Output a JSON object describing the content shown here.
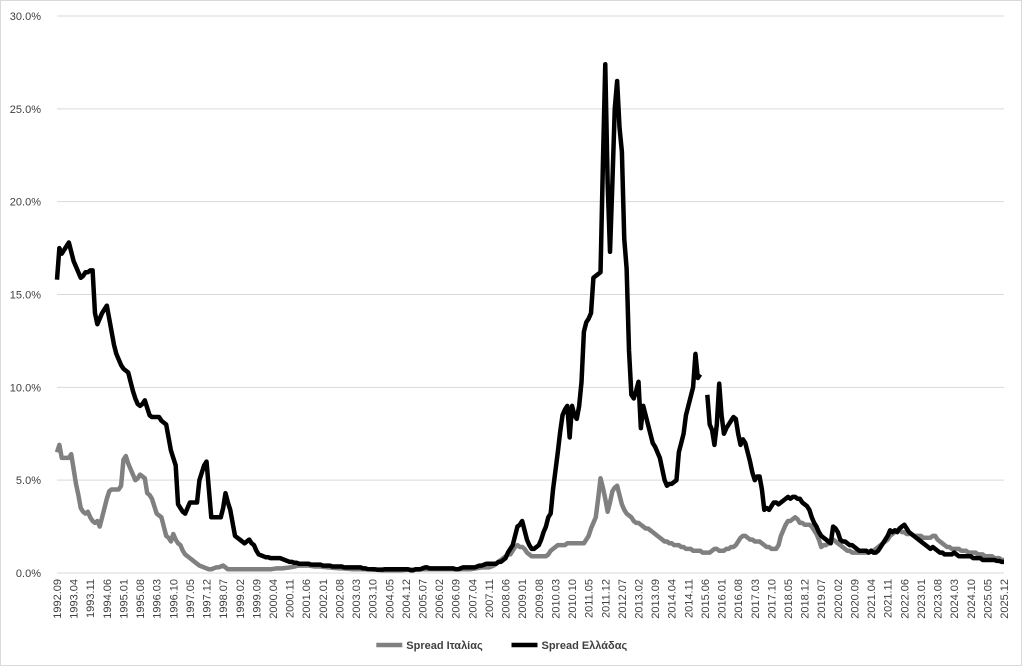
{
  "chart_data": {
    "type": "line",
    "categories": [
      "1992.09",
      null,
      null,
      null,
      null,
      null,
      null,
      "1993.04",
      null,
      null,
      null,
      null,
      null,
      null,
      "1993.11",
      null,
      null,
      null,
      null,
      null,
      null,
      "1994.06",
      null,
      null,
      null,
      null,
      null,
      null,
      "1995.01",
      null,
      null,
      null,
      null,
      null,
      null,
      "1995.08",
      null,
      null,
      null,
      null,
      null,
      null,
      "1996.03",
      null,
      null,
      null,
      null,
      null,
      null,
      "1996.10",
      null,
      null,
      null,
      null,
      null,
      null,
      "1997.05",
      null,
      null,
      null,
      null,
      null,
      null,
      "1997.12",
      null,
      null,
      null,
      null,
      null,
      null,
      "1998.07",
      null,
      null,
      null,
      null,
      null,
      null,
      "1999.02",
      null,
      null,
      null,
      null,
      null,
      null,
      "1999.09",
      null,
      null,
      null,
      null,
      null,
      null,
      "2000.04",
      null,
      null,
      null,
      null,
      null,
      null,
      "2000.11",
      null,
      null,
      null,
      null,
      null,
      null,
      "2001.06",
      null,
      null,
      null,
      null,
      null,
      null,
      "2002.01",
      null,
      null,
      null,
      null,
      null,
      null,
      "2002.08",
      null,
      null,
      null,
      null,
      null,
      null,
      "2003.03",
      null,
      null,
      null,
      null,
      null,
      null,
      "2003.10",
      null,
      null,
      null,
      null,
      null,
      null,
      "2004.05",
      null,
      null,
      null,
      null,
      null,
      null,
      "2004.12",
      null,
      null,
      null,
      null,
      null,
      null,
      "2005.07",
      null,
      null,
      null,
      null,
      null,
      null,
      "2006.02",
      null,
      null,
      null,
      null,
      null,
      null,
      "2006.09",
      null,
      null,
      null,
      null,
      null,
      null,
      "2007.04",
      null,
      null,
      null,
      null,
      null,
      null,
      "2007.11",
      null,
      null,
      null,
      null,
      null,
      null,
      "2008.06",
      null,
      null,
      null,
      null,
      null,
      null,
      "2009.01",
      null,
      null,
      null,
      null,
      null,
      null,
      "2009.08",
      null,
      null,
      null,
      null,
      null,
      null,
      "2010.03",
      null,
      null,
      null,
      null,
      null,
      null,
      "2010.10",
      null,
      null,
      null,
      null,
      null,
      null,
      "2011.05",
      null,
      null,
      null,
      null,
      null,
      null,
      "2011.12",
      null,
      null,
      null,
      null,
      null,
      null,
      "2012.07",
      null,
      null,
      null,
      null,
      null,
      null,
      "2013.02",
      null,
      null,
      null,
      null,
      null,
      null,
      "2013.09",
      null,
      null,
      null,
      null,
      null,
      null,
      "2014.04",
      null,
      null,
      null,
      null,
      null,
      null,
      "2014.11",
      null,
      null,
      null,
      null,
      null,
      null,
      "2015.06",
      null,
      null,
      null,
      null,
      null,
      null,
      "2016.01",
      null,
      null,
      null,
      null,
      null,
      null,
      "2016.08",
      null,
      null,
      null,
      null,
      null,
      null,
      "2017.03",
      null,
      null,
      null,
      null,
      null,
      null,
      "2017.10",
      null,
      null,
      null,
      null,
      null,
      null,
      "2018.05",
      null,
      null,
      null,
      null,
      null,
      null,
      "2018.12",
      null,
      null,
      null,
      null,
      null,
      null,
      "2019.07",
      null,
      null,
      null,
      null,
      null,
      null,
      "2020.02",
      null,
      null,
      null,
      null,
      null,
      null,
      "2020.09",
      null,
      null,
      null,
      null,
      null,
      null,
      "2021.04",
      null,
      null,
      null,
      null,
      null,
      null,
      "2021.11",
      null,
      null,
      null,
      null,
      null,
      null,
      "2022.06",
      null,
      null,
      null,
      null,
      null,
      null,
      "2023.01",
      null,
      null,
      null,
      null,
      null,
      null,
      "2023.08",
      null,
      null,
      null,
      null,
      null,
      null,
      "2024.03",
      null,
      null,
      null,
      null,
      null,
      null,
      "2024.10",
      null,
      null,
      null,
      null,
      null,
      null,
      "2025.05",
      null,
      null,
      null,
      null,
      null,
      null,
      "2025.12"
    ],
    "series": [
      {
        "name": "Spread Ιταλίας",
        "color": "#808080",
        "values": [
          6.5,
          6.9,
          6.2,
          6.2,
          6.2,
          6.2,
          6.4,
          5.6,
          4.8,
          4.2,
          3.5,
          3.3,
          3.2,
          3.3,
          3.0,
          2.8,
          2.7,
          2.8,
          2.5,
          3.0,
          3.5,
          4.0,
          4.4,
          4.5,
          4.5,
          4.5,
          4.5,
          4.7,
          6.1,
          6.3,
          5.9,
          5.6,
          5.3,
          5.0,
          5.1,
          5.3,
          5.2,
          5.1,
          4.3,
          4.2,
          4.0,
          3.6,
          3.2,
          3.1,
          3.0,
          2.5,
          2.0,
          1.9,
          1.7,
          2.1,
          1.8,
          1.6,
          1.5,
          1.2,
          1.0,
          0.9,
          0.8,
          0.7,
          0.6,
          0.5,
          0.4,
          0.35,
          0.3,
          0.25,
          0.2,
          0.2,
          0.25,
          0.3,
          0.3,
          0.35,
          0.4,
          0.3,
          0.2,
          0.2,
          0.2,
          0.2,
          0.2,
          0.2,
          0.2,
          0.2,
          0.2,
          0.2,
          0.2,
          0.2,
          0.2,
          0.2,
          0.2,
          0.2,
          0.2,
          0.2,
          0.2,
          0.22,
          0.24,
          0.25,
          0.25,
          0.25,
          0.27,
          0.28,
          0.3,
          0.32,
          0.35,
          0.38,
          0.4,
          0.4,
          0.4,
          0.4,
          0.4,
          0.38,
          0.36,
          0.35,
          0.35,
          0.35,
          0.33,
          0.32,
          0.3,
          0.3,
          0.28,
          0.27,
          0.26,
          0.25,
          0.25,
          0.24,
          0.23,
          0.22,
          0.21,
          0.2,
          0.2,
          0.2,
          0.2,
          0.2,
          0.2,
          0.2,
          0.2,
          0.19,
          0.18,
          0.17,
          0.16,
          0.15,
          0.15,
          0.15,
          0.15,
          0.15,
          0.15,
          0.15,
          0.15,
          0.15,
          0.16,
          0.17,
          0.18,
          0.18,
          0.18,
          0.18,
          0.18,
          0.19,
          0.2,
          0.2,
          0.2,
          0.2,
          0.2,
          0.2,
          0.2,
          0.2,
          0.2,
          0.2,
          0.2,
          0.2,
          0.2,
          0.2,
          0.2,
          0.2,
          0.2,
          0.2,
          0.2,
          0.2,
          0.2,
          0.22,
          0.24,
          0.26,
          0.28,
          0.3,
          0.3,
          0.3,
          0.3,
          0.35,
          0.4,
          0.5,
          0.6,
          0.7,
          0.8,
          0.9,
          1.0,
          1.0,
          1.2,
          1.4,
          1.5,
          1.4,
          1.4,
          1.3,
          1.1,
          1.0,
          0.9,
          0.9,
          0.9,
          0.9,
          0.9,
          0.9,
          0.9,
          1.0,
          1.2,
          1.3,
          1.4,
          1.5,
          1.5,
          1.5,
          1.5,
          1.6,
          1.6,
          1.6,
          1.6,
          1.6,
          1.6,
          1.6,
          1.6,
          1.8,
          2.0,
          2.4,
          2.7,
          3.0,
          4.0,
          5.1,
          4.6,
          4.0,
          3.3,
          3.8,
          4.4,
          4.6,
          4.7,
          4.2,
          3.7,
          3.4,
          3.2,
          3.1,
          3.0,
          2.8,
          2.7,
          2.7,
          2.6,
          2.5,
          2.4,
          2.4,
          2.3,
          2.2,
          2.1,
          2.0,
          1.9,
          1.8,
          1.7,
          1.7,
          1.6,
          1.6,
          1.5,
          1.5,
          1.5,
          1.4,
          1.4,
          1.3,
          1.3,
          1.3,
          1.2,
          1.2,
          1.2,
          1.2,
          1.1,
          1.1,
          1.1,
          1.1,
          1.2,
          1.3,
          1.3,
          1.2,
          1.2,
          1.2,
          1.3,
          1.3,
          1.4,
          1.4,
          1.5,
          1.7,
          1.9,
          2.0,
          2.0,
          1.9,
          1.8,
          1.8,
          1.7,
          1.7,
          1.7,
          1.6,
          1.5,
          1.4,
          1.4,
          1.3,
          1.3,
          1.3,
          1.5,
          2.0,
          2.3,
          2.6,
          2.8,
          2.8,
          2.9,
          3.0,
          2.9,
          2.7,
          2.7,
          2.6,
          2.6,
          2.6,
          2.5,
          2.3,
          2.1,
          1.8,
          1.4,
          1.5,
          1.5,
          1.6,
          1.7,
          1.8,
          1.7,
          1.6,
          1.5,
          1.4,
          1.3,
          1.2,
          1.2,
          1.1,
          1.1,
          1.1,
          1.1,
          1.1,
          1.1,
          1.1,
          1.1,
          1.2,
          1.2,
          1.3,
          1.4,
          1.5,
          1.6,
          1.7,
          1.8,
          2.0,
          2.1,
          2.2,
          2.3,
          2.3,
          2.2,
          2.2,
          2.1,
          2.1,
          2.1,
          2.0,
          2.0,
          2.0,
          2.0,
          1.9,
          1.9,
          1.9,
          1.9,
          2.0,
          2.0,
          1.8,
          1.7,
          1.6,
          1.5,
          1.4,
          1.4,
          1.3,
          1.3,
          1.3,
          1.3,
          1.2,
          1.2,
          1.2,
          1.1,
          1.1,
          1.1,
          1.1,
          1.0,
          1.0,
          1.0,
          0.9,
          0.9,
          0.9,
          0.9,
          0.8,
          0.8,
          0.8,
          0.7,
          0.7
        ]
      },
      {
        "name": "Spread Ελλάδας",
        "color": "#000000",
        "values": [
          15.8,
          17.5,
          17.2,
          17.4,
          17.6,
          17.8,
          17.3,
          16.8,
          16.5,
          16.2,
          15.9,
          16.0,
          16.2,
          16.2,
          16.3,
          16.3,
          14.0,
          13.4,
          13.7,
          14.0,
          14.2,
          14.4,
          13.7,
          13.0,
          12.3,
          11.8,
          11.5,
          11.2,
          11.0,
          10.9,
          10.8,
          10.3,
          9.8,
          9.4,
          9.1,
          9.0,
          9.1,
          9.3,
          8.9,
          8.5,
          8.4,
          8.4,
          8.4,
          8.4,
          8.2,
          8.1,
          8.0,
          7.3,
          6.6,
          6.2,
          5.8,
          3.7,
          3.5,
          3.3,
          3.2,
          3.5,
          3.8,
          3.8,
          3.8,
          3.8,
          5.0,
          5.4,
          5.8,
          6.0,
          4.5,
          3.0,
          3.0,
          3.0,
          3.0,
          3.0,
          3.5,
          4.3,
          3.8,
          3.4,
          2.7,
          2.0,
          1.9,
          1.8,
          1.7,
          1.6,
          1.7,
          1.8,
          1.6,
          1.5,
          1.2,
          1.0,
          0.95,
          0.9,
          0.85,
          0.85,
          0.8,
          0.8,
          0.8,
          0.8,
          0.8,
          0.75,
          0.7,
          0.65,
          0.6,
          0.6,
          0.55,
          0.55,
          0.5,
          0.5,
          0.5,
          0.5,
          0.5,
          0.45,
          0.45,
          0.45,
          0.45,
          0.45,
          0.4,
          0.4,
          0.4,
          0.4,
          0.35,
          0.35,
          0.35,
          0.35,
          0.35,
          0.3,
          0.3,
          0.3,
          0.3,
          0.3,
          0.3,
          0.3,
          0.3,
          0.25,
          0.25,
          0.2,
          0.2,
          0.2,
          0.2,
          0.18,
          0.18,
          0.18,
          0.2,
          0.2,
          0.2,
          0.2,
          0.2,
          0.2,
          0.2,
          0.2,
          0.2,
          0.2,
          0.2,
          0.15,
          0.15,
          0.2,
          0.2,
          0.2,
          0.25,
          0.3,
          0.3,
          0.25,
          0.25,
          0.25,
          0.25,
          0.25,
          0.25,
          0.25,
          0.25,
          0.25,
          0.25,
          0.25,
          0.2,
          0.2,
          0.25,
          0.3,
          0.3,
          0.3,
          0.3,
          0.3,
          0.3,
          0.35,
          0.4,
          0.4,
          0.45,
          0.5,
          0.5,
          0.5,
          0.5,
          0.5,
          0.6,
          0.6,
          0.7,
          0.8,
          1.1,
          1.3,
          1.5,
          2.0,
          2.5,
          2.6,
          2.8,
          2.3,
          1.8,
          1.5,
          1.3,
          1.3,
          1.4,
          1.5,
          1.8,
          2.2,
          2.5,
          3.0,
          3.2,
          4.5,
          5.5,
          6.5,
          7.6,
          8.5,
          8.8,
          9.0,
          7.3,
          9.0,
          8.5,
          8.3,
          9.0,
          10.3,
          13.0,
          13.5,
          13.7,
          14.0,
          15.9,
          16.0,
          16.1,
          16.2,
          22.0,
          27.4,
          21.0,
          17.3,
          21.0,
          25.0,
          26.5,
          24.0,
          22.7,
          18.0,
          16.4,
          12.0,
          9.6,
          9.4,
          9.8,
          10.3,
          7.8,
          9.0,
          8.5,
          8.0,
          7.5,
          7.0,
          6.8,
          6.5,
          6.2,
          5.6,
          5.0,
          4.7,
          4.8,
          4.8,
          4.9,
          5.0,
          6.5,
          7.0,
          7.5,
          8.5,
          9.0,
          9.5,
          10.0,
          11.8,
          10.5,
          10.7,
          null,
          null,
          9.6,
          8.0,
          7.7,
          6.9,
          8.0,
          10.2,
          8.5,
          7.5,
          7.8,
          8.0,
          8.2,
          8.4,
          8.3,
          7.5,
          6.9,
          7.2,
          7.0,
          6.5,
          6.0,
          5.4,
          5.0,
          5.2,
          5.2,
          4.5,
          3.4,
          3.5,
          3.4,
          3.6,
          3.8,
          3.8,
          3.7,
          3.8,
          3.9,
          4.0,
          4.1,
          4.0,
          4.1,
          4.1,
          4.0,
          4.0,
          3.8,
          3.7,
          3.6,
          3.4,
          3.0,
          2.7,
          2.5,
          2.2,
          2.0,
          1.9,
          1.8,
          1.7,
          1.6,
          2.5,
          2.4,
          2.2,
          1.8,
          1.7,
          1.7,
          1.6,
          1.5,
          1.5,
          1.4,
          1.3,
          1.2,
          1.2,
          1.2,
          1.2,
          1.1,
          1.2,
          1.1,
          1.1,
          1.2,
          1.4,
          1.6,
          1.8,
          2.0,
          2.3,
          2.2,
          2.3,
          2.2,
          2.4,
          2.5,
          2.6,
          2.4,
          2.2,
          2.1,
          2.0,
          1.9,
          1.8,
          1.7,
          1.6,
          1.5,
          1.4,
          1.3,
          1.4,
          1.3,
          1.2,
          1.1,
          1.1,
          1.0,
          1.0,
          1.0,
          1.0,
          1.1,
          1.0,
          0.9,
          0.9,
          0.9,
          0.9,
          0.9,
          0.9,
          0.8,
          0.8,
          0.8,
          0.8,
          0.7,
          0.7,
          0.7,
          0.7,
          0.7,
          0.7,
          0.65,
          0.65,
          0.6,
          0.6
        ]
      }
    ],
    "ylim": [
      0,
      30
    ],
    "yticks": [
      {
        "value": 0,
        "label": "0.0%"
      },
      {
        "value": 5,
        "label": "5.0%"
      },
      {
        "value": 10,
        "label": "10.0%"
      },
      {
        "value": 15,
        "label": "15.0%"
      },
      {
        "value": 20,
        "label": "20.0%"
      },
      {
        "value": 25,
        "label": "25.0%"
      },
      {
        "value": 30,
        "label": "30.0%"
      }
    ],
    "grid": true,
    "legend": "bottom"
  }
}
